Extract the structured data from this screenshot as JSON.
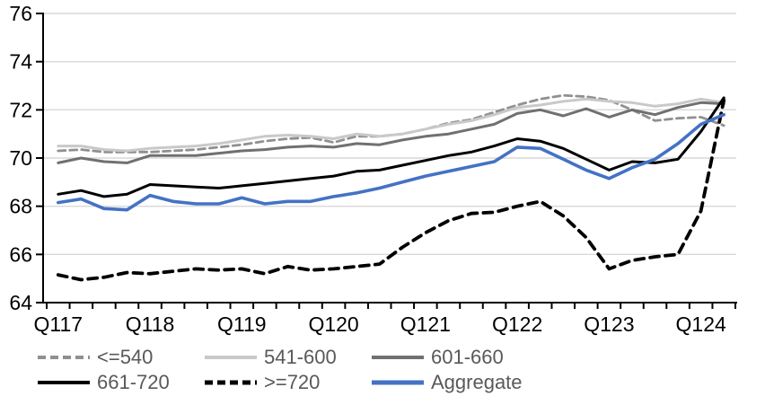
{
  "chart_data": {
    "type": "line",
    "title": "",
    "xlabel": "",
    "ylabel": "",
    "ylim": [
      64,
      76
    ],
    "y_ticks": [
      76,
      74,
      72,
      70,
      68,
      66,
      64
    ],
    "grid": true,
    "legend_position": "bottom",
    "x_quarters": [
      "Q117",
      "Q217",
      "Q317",
      "Q417",
      "Q118",
      "Q218",
      "Q318",
      "Q418",
      "Q119",
      "Q219",
      "Q319",
      "Q419",
      "Q120",
      "Q220",
      "Q320",
      "Q420",
      "Q121",
      "Q221",
      "Q321",
      "Q421",
      "Q122",
      "Q222",
      "Q322",
      "Q422",
      "Q123",
      "Q223",
      "Q323",
      "Q423",
      "Q124",
      "Q224"
    ],
    "x_axis_tick_labels": [
      "Q117",
      "Q118",
      "Q119",
      "Q120",
      "Q121",
      "Q122",
      "Q123",
      "Q124"
    ],
    "series": [
      {
        "name": "<=540",
        "color": "#909090",
        "style": "dashed",
        "values": [
          70.3,
          70.35,
          70.25,
          70.25,
          70.25,
          70.3,
          70.35,
          70.45,
          70.55,
          70.7,
          70.8,
          70.85,
          70.65,
          70.9,
          70.9,
          71.0,
          71.2,
          71.45,
          71.6,
          71.9,
          72.2,
          72.45,
          72.6,
          72.55,
          72.4,
          72.0,
          71.55,
          71.65,
          71.7,
          71.35
        ]
      },
      {
        "name": "541-600",
        "color": "#C9C9C9",
        "style": "solid",
        "values": [
          70.5,
          70.5,
          70.35,
          70.3,
          70.4,
          70.45,
          70.5,
          70.6,
          70.75,
          70.9,
          70.95,
          70.9,
          70.8,
          71.0,
          70.9,
          71.0,
          71.2,
          71.4,
          71.55,
          71.8,
          72.1,
          72.2,
          72.35,
          72.45,
          72.35,
          72.3,
          72.15,
          72.25,
          72.45,
          72.3
        ]
      },
      {
        "name": "601-660",
        "color": "#707070",
        "style": "solid",
        "values": [
          69.8,
          70.0,
          69.85,
          69.8,
          70.1,
          70.1,
          70.1,
          70.2,
          70.3,
          70.35,
          70.45,
          70.5,
          70.45,
          70.6,
          70.55,
          70.75,
          70.9,
          71.0,
          71.2,
          71.4,
          71.85,
          72.0,
          71.75,
          72.05,
          71.7,
          72.0,
          71.8,
          72.1,
          72.3,
          72.25
        ]
      },
      {
        "name": "661-720",
        "color": "#000000",
        "style": "solid",
        "values": [
          68.5,
          68.65,
          68.4,
          68.5,
          68.9,
          68.85,
          68.8,
          68.75,
          68.85,
          68.95,
          69.05,
          69.15,
          69.25,
          69.45,
          69.5,
          69.7,
          69.9,
          70.1,
          70.25,
          70.5,
          70.8,
          70.7,
          70.4,
          69.95,
          69.5,
          69.85,
          69.8,
          69.95,
          71.1,
          72.5
        ]
      },
      {
        "name": ">=720",
        "color": "#000000",
        "style": "dashed-bold",
        "values": [
          65.15,
          64.95,
          65.05,
          65.25,
          65.2,
          65.3,
          65.4,
          65.35,
          65.4,
          65.2,
          65.5,
          65.35,
          65.4,
          65.5,
          65.6,
          66.3,
          66.9,
          67.4,
          67.7,
          67.75,
          68.0,
          68.2,
          67.6,
          66.7,
          65.4,
          65.75,
          65.9,
          66.0,
          67.8,
          72.4
        ]
      },
      {
        "name": "Aggregate",
        "color": "#4472C4",
        "style": "solid-bold",
        "values": [
          68.15,
          68.3,
          67.9,
          67.85,
          68.45,
          68.2,
          68.1,
          68.1,
          68.35,
          68.1,
          68.2,
          68.2,
          68.4,
          68.55,
          68.75,
          69.0,
          69.25,
          69.45,
          69.65,
          69.85,
          70.45,
          70.4,
          69.95,
          69.5,
          69.15,
          69.6,
          69.95,
          70.6,
          71.4,
          71.8
        ]
      }
    ]
  },
  "style_colors": {
    "gridline": "#D9D9D9",
    "axis": "#000000",
    "tick_text": "#000000",
    "legend_text": "#595959"
  }
}
